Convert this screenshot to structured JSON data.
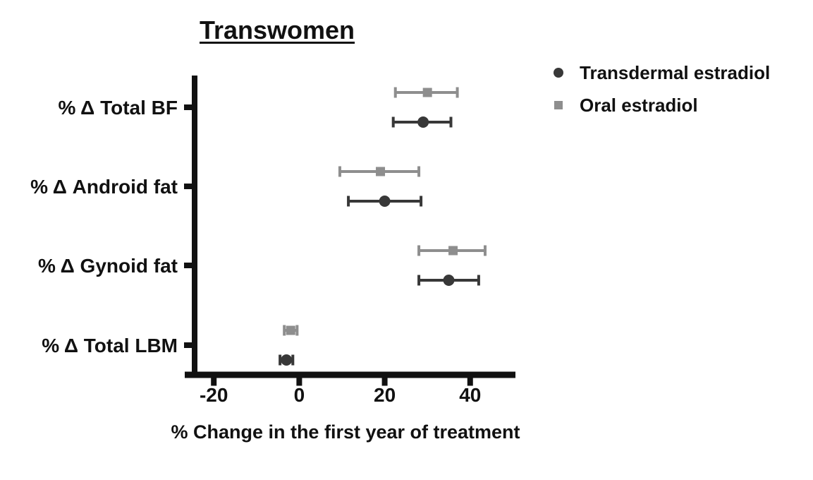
{
  "chart_data": {
    "type": "scatter",
    "title": "Transwomen",
    "xlabel": "% Change in the first year of treatment",
    "categories": [
      "% Δ Total BF",
      "% Δ Android fat",
      "% Δ Gynoid fat",
      "% Δ Total LBM"
    ],
    "x_ticks": [
      -20,
      0,
      20,
      40
    ],
    "xlim": [
      -26.8,
      50.6
    ],
    "grid": false,
    "legend_position": "top-right",
    "axis_color": "#111111",
    "series": [
      {
        "name": "Transdermal estradiol",
        "marker": "circle",
        "color": "#383838",
        "values": [
          29,
          20,
          35,
          -3
        ],
        "ci_low": [
          22,
          11.5,
          28,
          -4.5
        ],
        "ci_high": [
          35.5,
          28.5,
          42,
          -1.5
        ]
      },
      {
        "name": "Oral estradiol",
        "marker": "square",
        "color": "#8e8e8e",
        "values": [
          30,
          19,
          36,
          -2
        ],
        "ci_low": [
          22.5,
          9.5,
          28,
          -3.5
        ],
        "ci_high": [
          37,
          28,
          43.5,
          -0.5
        ]
      }
    ]
  }
}
